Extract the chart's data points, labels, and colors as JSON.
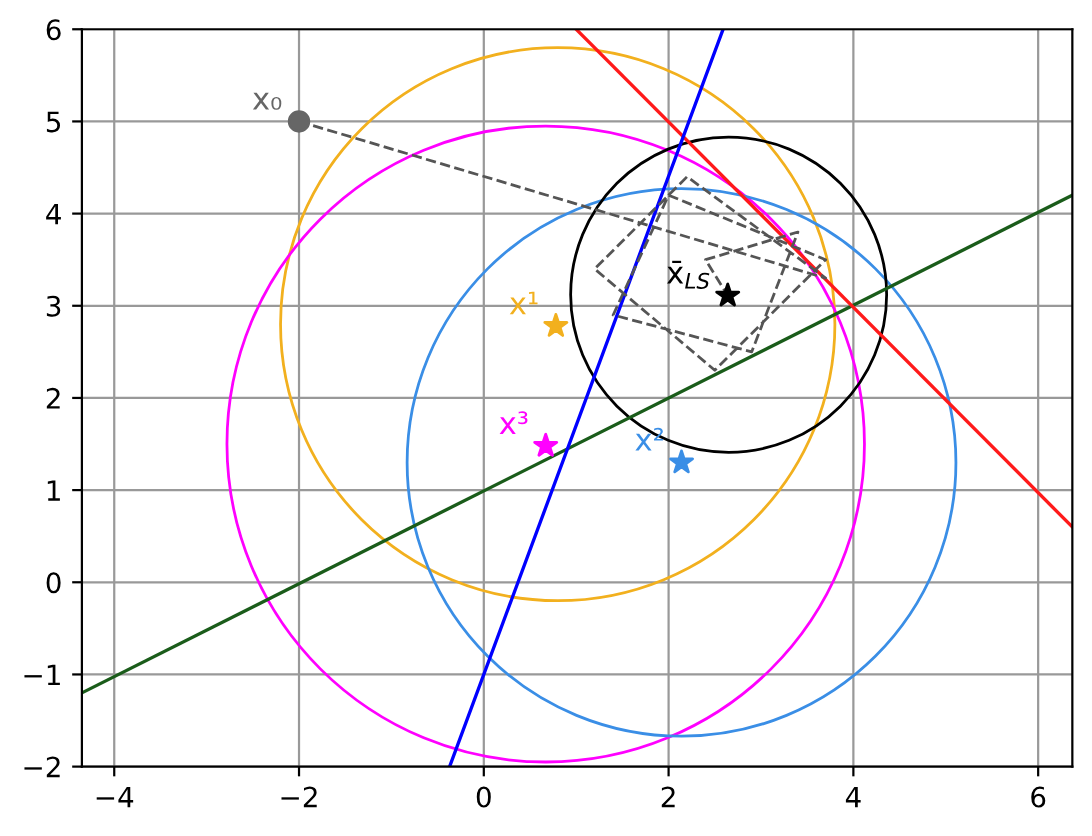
{
  "chart_data": {
    "type": "line",
    "xlim": [
      -4.35,
      6.37
    ],
    "ylim": [
      -2,
      6
    ],
    "xticks": [
      -4,
      -2,
      0,
      2,
      4,
      6
    ],
    "yticks": [
      -2,
      -1,
      0,
      1,
      2,
      3,
      4,
      5,
      6
    ],
    "grid": true,
    "legend": false,
    "series": [
      {
        "color": "#1a5c1a",
        "marker": "none",
        "line_style": "solid",
        "x": [
          -4.35,
          6.37
        ],
        "values": [
          -1.2,
          4.2
        ]
      },
      {
        "color": "#ff1a1a",
        "marker": "none",
        "line_style": "solid",
        "x": [
          1.0,
          6.37
        ],
        "values": [
          6.0,
          0.6
        ]
      },
      {
        "color": "#0000ff",
        "marker": "none",
        "line_style": "solid",
        "x": [
          -0.37,
          2.59
        ],
        "values": [
          -2.0,
          6.0
        ]
      },
      {
        "color": "#555555",
        "marker": "none",
        "line_style": "dashed",
        "x": [
          -2,
          3.7,
          2.2,
          1.2,
          2.5,
          3.7,
          2.0,
          1.4,
          2.9,
          3.4,
          2.4,
          2.64
        ],
        "values": [
          5,
          3.3,
          4.4,
          3.4,
          2.3,
          3.5,
          4.2,
          2.9,
          2.5,
          3.8,
          3.5,
          3.11
        ]
      },
      {
        "type": "scatter",
        "name": "x₀",
        "color": "#666666",
        "marker": "circle",
        "x": [
          -2
        ],
        "values": [
          5
        ]
      },
      {
        "type": "scatter",
        "name": "x¹",
        "color": "#f2b01e",
        "marker": "star",
        "x": [
          0.78
        ],
        "values": [
          2.78
        ]
      },
      {
        "type": "scatter",
        "name": "x²",
        "color": "#3a8ee6",
        "marker": "star",
        "x": [
          2.14
        ],
        "values": [
          1.3
        ]
      },
      {
        "type": "scatter",
        "name": "x³",
        "color": "#ff00ff",
        "marker": "star",
        "x": [
          0.67
        ],
        "values": [
          1.48
        ]
      },
      {
        "type": "scatter",
        "name": "x̄$_{LS}$",
        "color": "#000000",
        "marker": "star",
        "x": [
          2.64
        ],
        "values": [
          3.11
        ]
      }
    ]
  }
}
